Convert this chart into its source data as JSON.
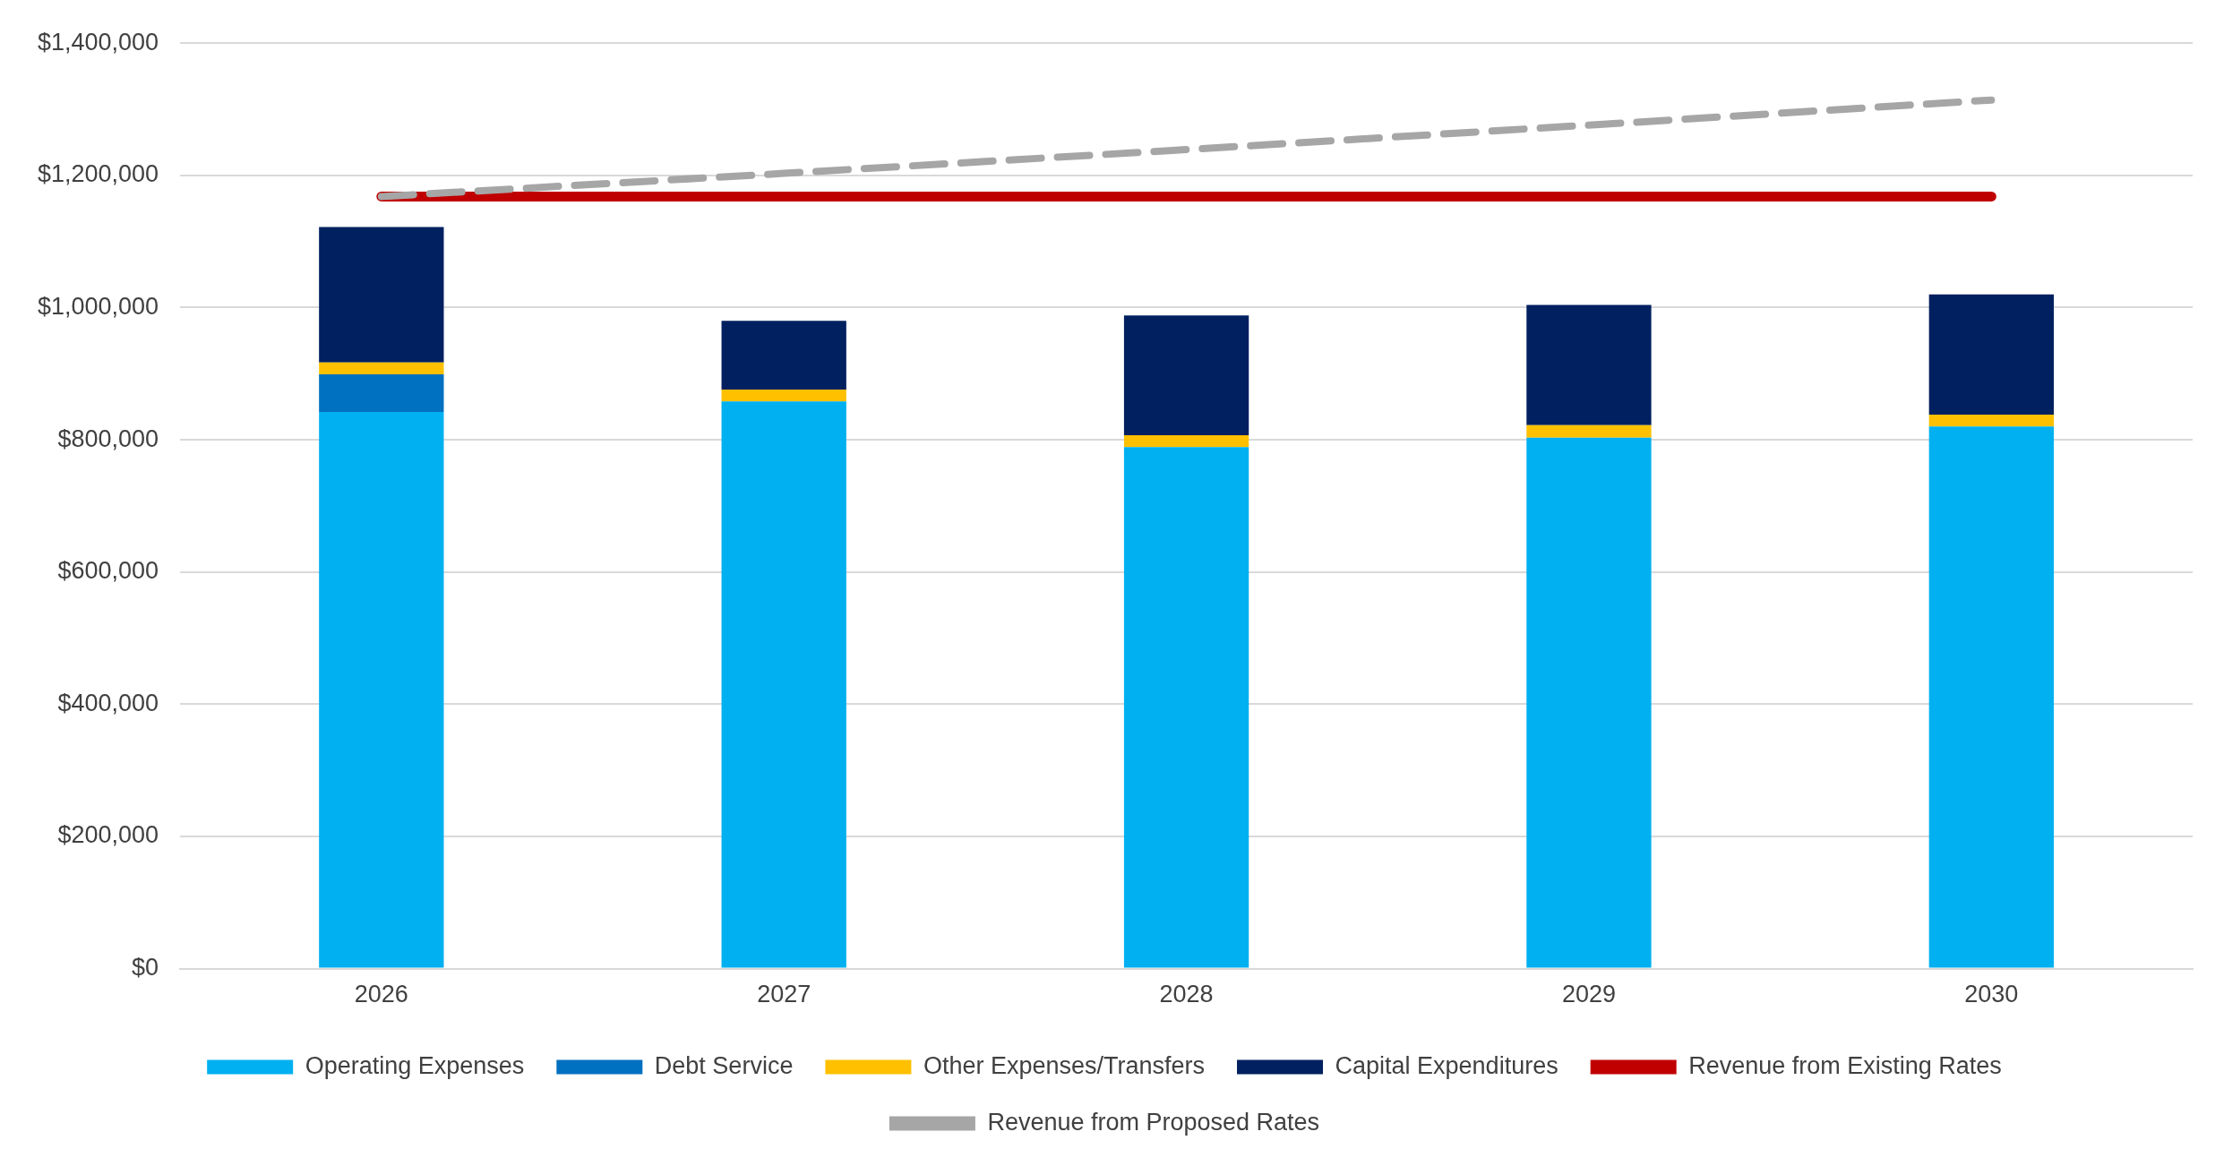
{
  "chart_data": {
    "type": "bar",
    "stacked": true,
    "categories": [
      "2026",
      "2027",
      "2028",
      "2029",
      "2030"
    ],
    "series": [
      {
        "name": "Operating Expenses",
        "color": "#00b0f0",
        "values": [
          842000,
          858000,
          789000,
          803000,
          820000
        ]
      },
      {
        "name": "Debt Service",
        "color": "#0070c0",
        "values": [
          57000,
          0,
          0,
          0,
          0
        ]
      },
      {
        "name": "Other Expenses/Transfers",
        "color": "#ffc000",
        "values": [
          18000,
          18000,
          18000,
          19000,
          18000
        ]
      },
      {
        "name": "Capital Expenditures",
        "color": "#002060",
        "values": [
          205000,
          104000,
          181000,
          182000,
          182000
        ]
      },
      {
        "name": "Revenue from Existing Rates",
        "type": "line",
        "color": "#c00000",
        "line_style": "solid",
        "values": [
          1168000,
          1168000,
          1168000,
          1168000,
          1168000
        ]
      },
      {
        "name": "Revenue from Proposed Rates",
        "type": "line",
        "color": "#a6a6a6",
        "line_style": "dashed",
        "values": [
          1168000,
          1203000,
          1239000,
          1276000,
          1314000
        ]
      }
    ],
    "ylim": [
      0,
      1400000
    ],
    "yticks": [
      {
        "value": 0,
        "label": "$0"
      },
      {
        "value": 200000,
        "label": "$200,000"
      },
      {
        "value": 400000,
        "label": "$400,000"
      },
      {
        "value": 600000,
        "label": "$600,000"
      },
      {
        "value": 800000,
        "label": "$800,000"
      },
      {
        "value": 1000000,
        "label": "$1,000,000"
      },
      {
        "value": 1200000,
        "label": "$1,200,000"
      },
      {
        "value": 1400000,
        "label": "$1,400,000"
      }
    ],
    "grid": "y",
    "legend": "bottom",
    "marker": "none"
  }
}
